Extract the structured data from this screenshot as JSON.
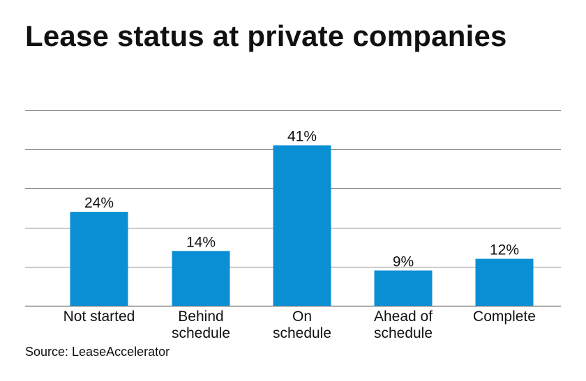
{
  "title": "Lease status at private companies",
  "source": "Source: LeaseAccelerator",
  "colors": {
    "bar": "#0a8fd4",
    "gridline": "#8c8c8c",
    "text": "#111111"
  },
  "chart_data": {
    "type": "bar",
    "title": "Lease status at private companies",
    "categories": [
      [
        "Not started"
      ],
      [
        "Behind",
        "schedule"
      ],
      [
        "On",
        "schedule"
      ],
      [
        "Ahead of",
        "schedule"
      ],
      [
        "Complete"
      ]
    ],
    "values": [
      24,
      14,
      41,
      9,
      12
    ],
    "value_labels": [
      "24%",
      "14%",
      "41%",
      "9%",
      "12%"
    ],
    "ylim": [
      0,
      50
    ],
    "ytick_step": 10,
    "grid": true,
    "xlabel": "",
    "ylabel": ""
  }
}
